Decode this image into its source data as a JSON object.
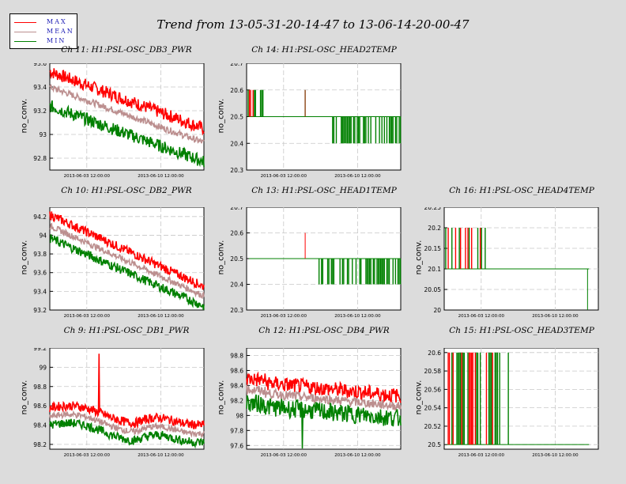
{
  "title": "Trend from 13-05-31-20-14-47 to 13-06-14-20-00-47",
  "legend": [
    {
      "label": "MAX",
      "color": "#ff0000"
    },
    {
      "label": "MEAN",
      "color": "#bc8f8f"
    },
    {
      "label": "MIN",
      "color": "#008000"
    }
  ],
  "x_tick_labels": [
    "2013-06-03 12:00:00",
    "2013-06-10 12:00:00"
  ],
  "ylabel": "no_conv.",
  "chart_data": [
    {
      "id": "ch11",
      "type": "line",
      "title": "Ch 11: H1:PSL-OSC_DB3_PWR",
      "x": [
        "2013-05-31 20:14",
        "2013-06-14 20:00"
      ],
      "ylim": [
        92.7,
        93.6
      ],
      "yticks": [
        "93.6",
        "93.4",
        "93.2",
        "93",
        "92.8"
      ],
      "series": [
        {
          "name": "MAX",
          "start": 93.53,
          "end": 93.05,
          "noise": 0.02
        },
        {
          "name": "MEAN",
          "start": 93.4,
          "end": 92.93,
          "noise": 0.01
        },
        {
          "name": "MIN",
          "start": 93.24,
          "end": 92.77,
          "noise": 0.02
        }
      ]
    },
    {
      "id": "ch14",
      "type": "line",
      "title": "Ch 14: H1:PSL-OSC_HEAD2TEMP",
      "ylim": [
        20.3,
        20.7
      ],
      "yticks": [
        "20.7",
        "20.6",
        "20.5",
        "20.4",
        "20.3"
      ],
      "baseline": 20.5
    },
    {
      "id": "ch10",
      "type": "line",
      "title": "Ch 10: H1:PSL-OSC_DB2_PWR",
      "ylim": [
        93.2,
        94.3
      ],
      "yticks": [
        "94.2",
        "94",
        "93.8",
        "93.6",
        "93.4",
        "93.2"
      ],
      "series": [
        {
          "name": "MAX",
          "start": 94.22,
          "end": 93.45,
          "noise": 0.015
        },
        {
          "name": "MEAN",
          "start": 94.1,
          "end": 93.35,
          "noise": 0.01
        },
        {
          "name": "MIN",
          "start": 93.97,
          "end": 93.24,
          "noise": 0.015
        }
      ]
    },
    {
      "id": "ch13",
      "type": "line",
      "title": "Ch 13: H1:PSL-OSC_HEAD1TEMP",
      "ylim": [
        20.3,
        20.7
      ],
      "yticks": [
        "20.7",
        "20.6",
        "20.5",
        "20.4",
        "20.3"
      ],
      "baseline": 20.5
    },
    {
      "id": "ch16",
      "type": "line",
      "title": "Ch 16: H1:PSL-OSC_HEAD4TEMP",
      "ylim": [
        20.0,
        20.25
      ],
      "yticks": [
        "20.25",
        "20.2",
        "20.15",
        "20.1",
        "20.05",
        "20"
      ],
      "baseline": 20.1
    },
    {
      "id": "ch9",
      "type": "line",
      "title": "Ch 9: H1:PSL-OSC_DB1_PWR",
      "ylim": [
        98.15,
        99.2
      ],
      "yticks": [
        "99.2",
        "99",
        "98.8",
        "98.6",
        "98.4",
        "98.2"
      ],
      "series": [
        {
          "name": "MAX",
          "start": 98.58,
          "end": 98.38,
          "noise": 0.015
        },
        {
          "name": "MEAN",
          "start": 98.49,
          "end": 98.29,
          "noise": 0.01
        },
        {
          "name": "MIN",
          "start": 98.4,
          "end": 98.2,
          "noise": 0.015
        }
      ],
      "spike": {
        "series": "MAX",
        "value": 99.14
      }
    },
    {
      "id": "ch12",
      "type": "line",
      "title": "Ch 12: H1:PSL-OSC_DB4_PWR",
      "ylim": [
        97.55,
        98.9
      ],
      "yticks": [
        "98.8",
        "98.6",
        "98.4",
        "98.2",
        "98",
        "97.8",
        "97.6"
      ],
      "series": [
        {
          "name": "MAX",
          "start": 98.46,
          "end": 98.26,
          "noise": 0.025
        },
        {
          "name": "MEAN",
          "start": 98.32,
          "end": 98.12,
          "noise": 0.015
        },
        {
          "name": "MIN",
          "start": 98.14,
          "end": 97.96,
          "noise": 0.03
        }
      ],
      "dip": {
        "series": "MIN",
        "value": 97.56
      }
    },
    {
      "id": "ch15",
      "type": "line",
      "title": "Ch 15: H1:PSL-OSC_HEAD3TEMP",
      "ylim": [
        20.495,
        20.605
      ],
      "yticks": [
        "20.6",
        "20.58",
        "20.56",
        "20.54",
        "20.52",
        "20.5"
      ],
      "baseline": 20.5
    }
  ]
}
